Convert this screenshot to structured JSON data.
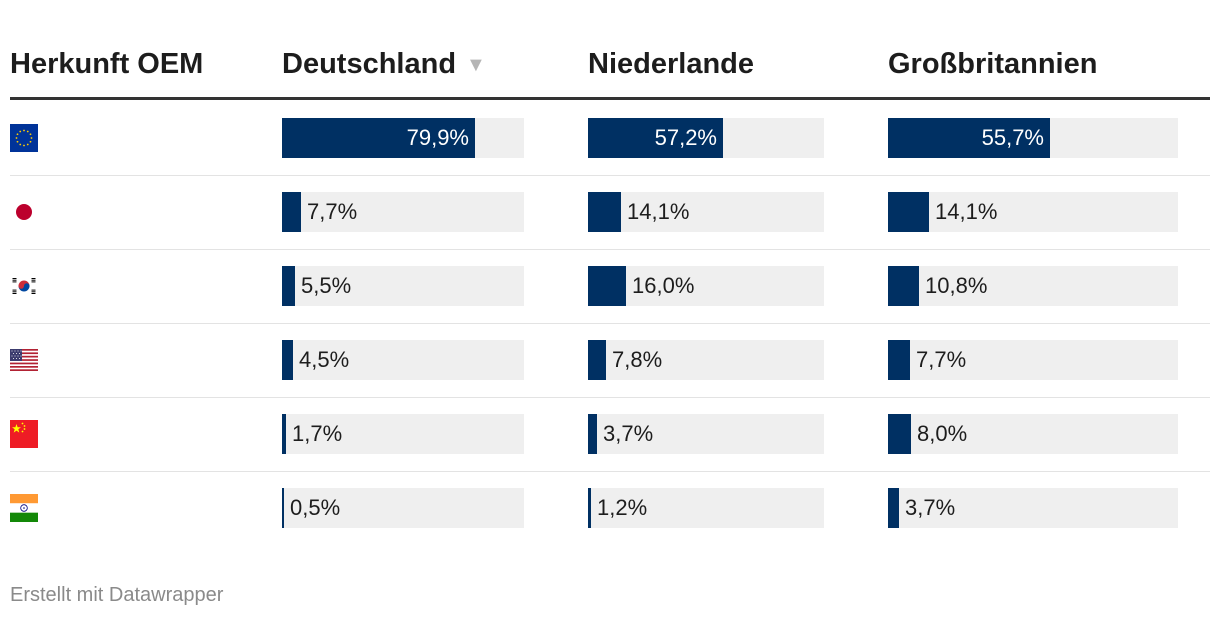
{
  "chart_data": {
    "type": "table",
    "columns": [
      "Herkunft OEM",
      "Deutschland",
      "Niederlande",
      "Großbritannien"
    ],
    "sorted_column": "Deutschland",
    "sort_order": "descending",
    "value_range": [
      0,
      100
    ],
    "rows": [
      {
        "origin": "EU",
        "flag": "eu-flag-icon",
        "values": [
          79.9,
          57.2,
          55.7
        ],
        "labels": [
          "79,9%",
          "57,2%",
          "55,7%"
        ]
      },
      {
        "origin": "Japan",
        "flag": "japan-flag-icon",
        "values": [
          7.7,
          14.1,
          14.1
        ],
        "labels": [
          "7,7%",
          "14,1%",
          "14,1%"
        ]
      },
      {
        "origin": "Südkorea",
        "flag": "south-korea-flag-icon",
        "values": [
          5.5,
          16.0,
          10.8
        ],
        "labels": [
          "5,5%",
          "16,0%",
          "10,8%"
        ]
      },
      {
        "origin": "USA",
        "flag": "usa-flag-icon",
        "values": [
          4.5,
          7.8,
          7.7
        ],
        "labels": [
          "4,5%",
          "7,8%",
          "7,7%"
        ]
      },
      {
        "origin": "China",
        "flag": "china-flag-icon",
        "values": [
          1.7,
          3.7,
          8.0
        ],
        "labels": [
          "1,7%",
          "3,7%",
          "8,0%"
        ]
      },
      {
        "origin": "Indien",
        "flag": "india-flag-icon",
        "values": [
          0.5,
          1.2,
          3.7
        ],
        "labels": [
          "0,5%",
          "1,2%",
          "3,7%"
        ]
      }
    ],
    "colors": {
      "bar": "#003063",
      "track": "#efefef"
    }
  },
  "footer": {
    "credit": "Erstellt mit Datawrapper"
  }
}
